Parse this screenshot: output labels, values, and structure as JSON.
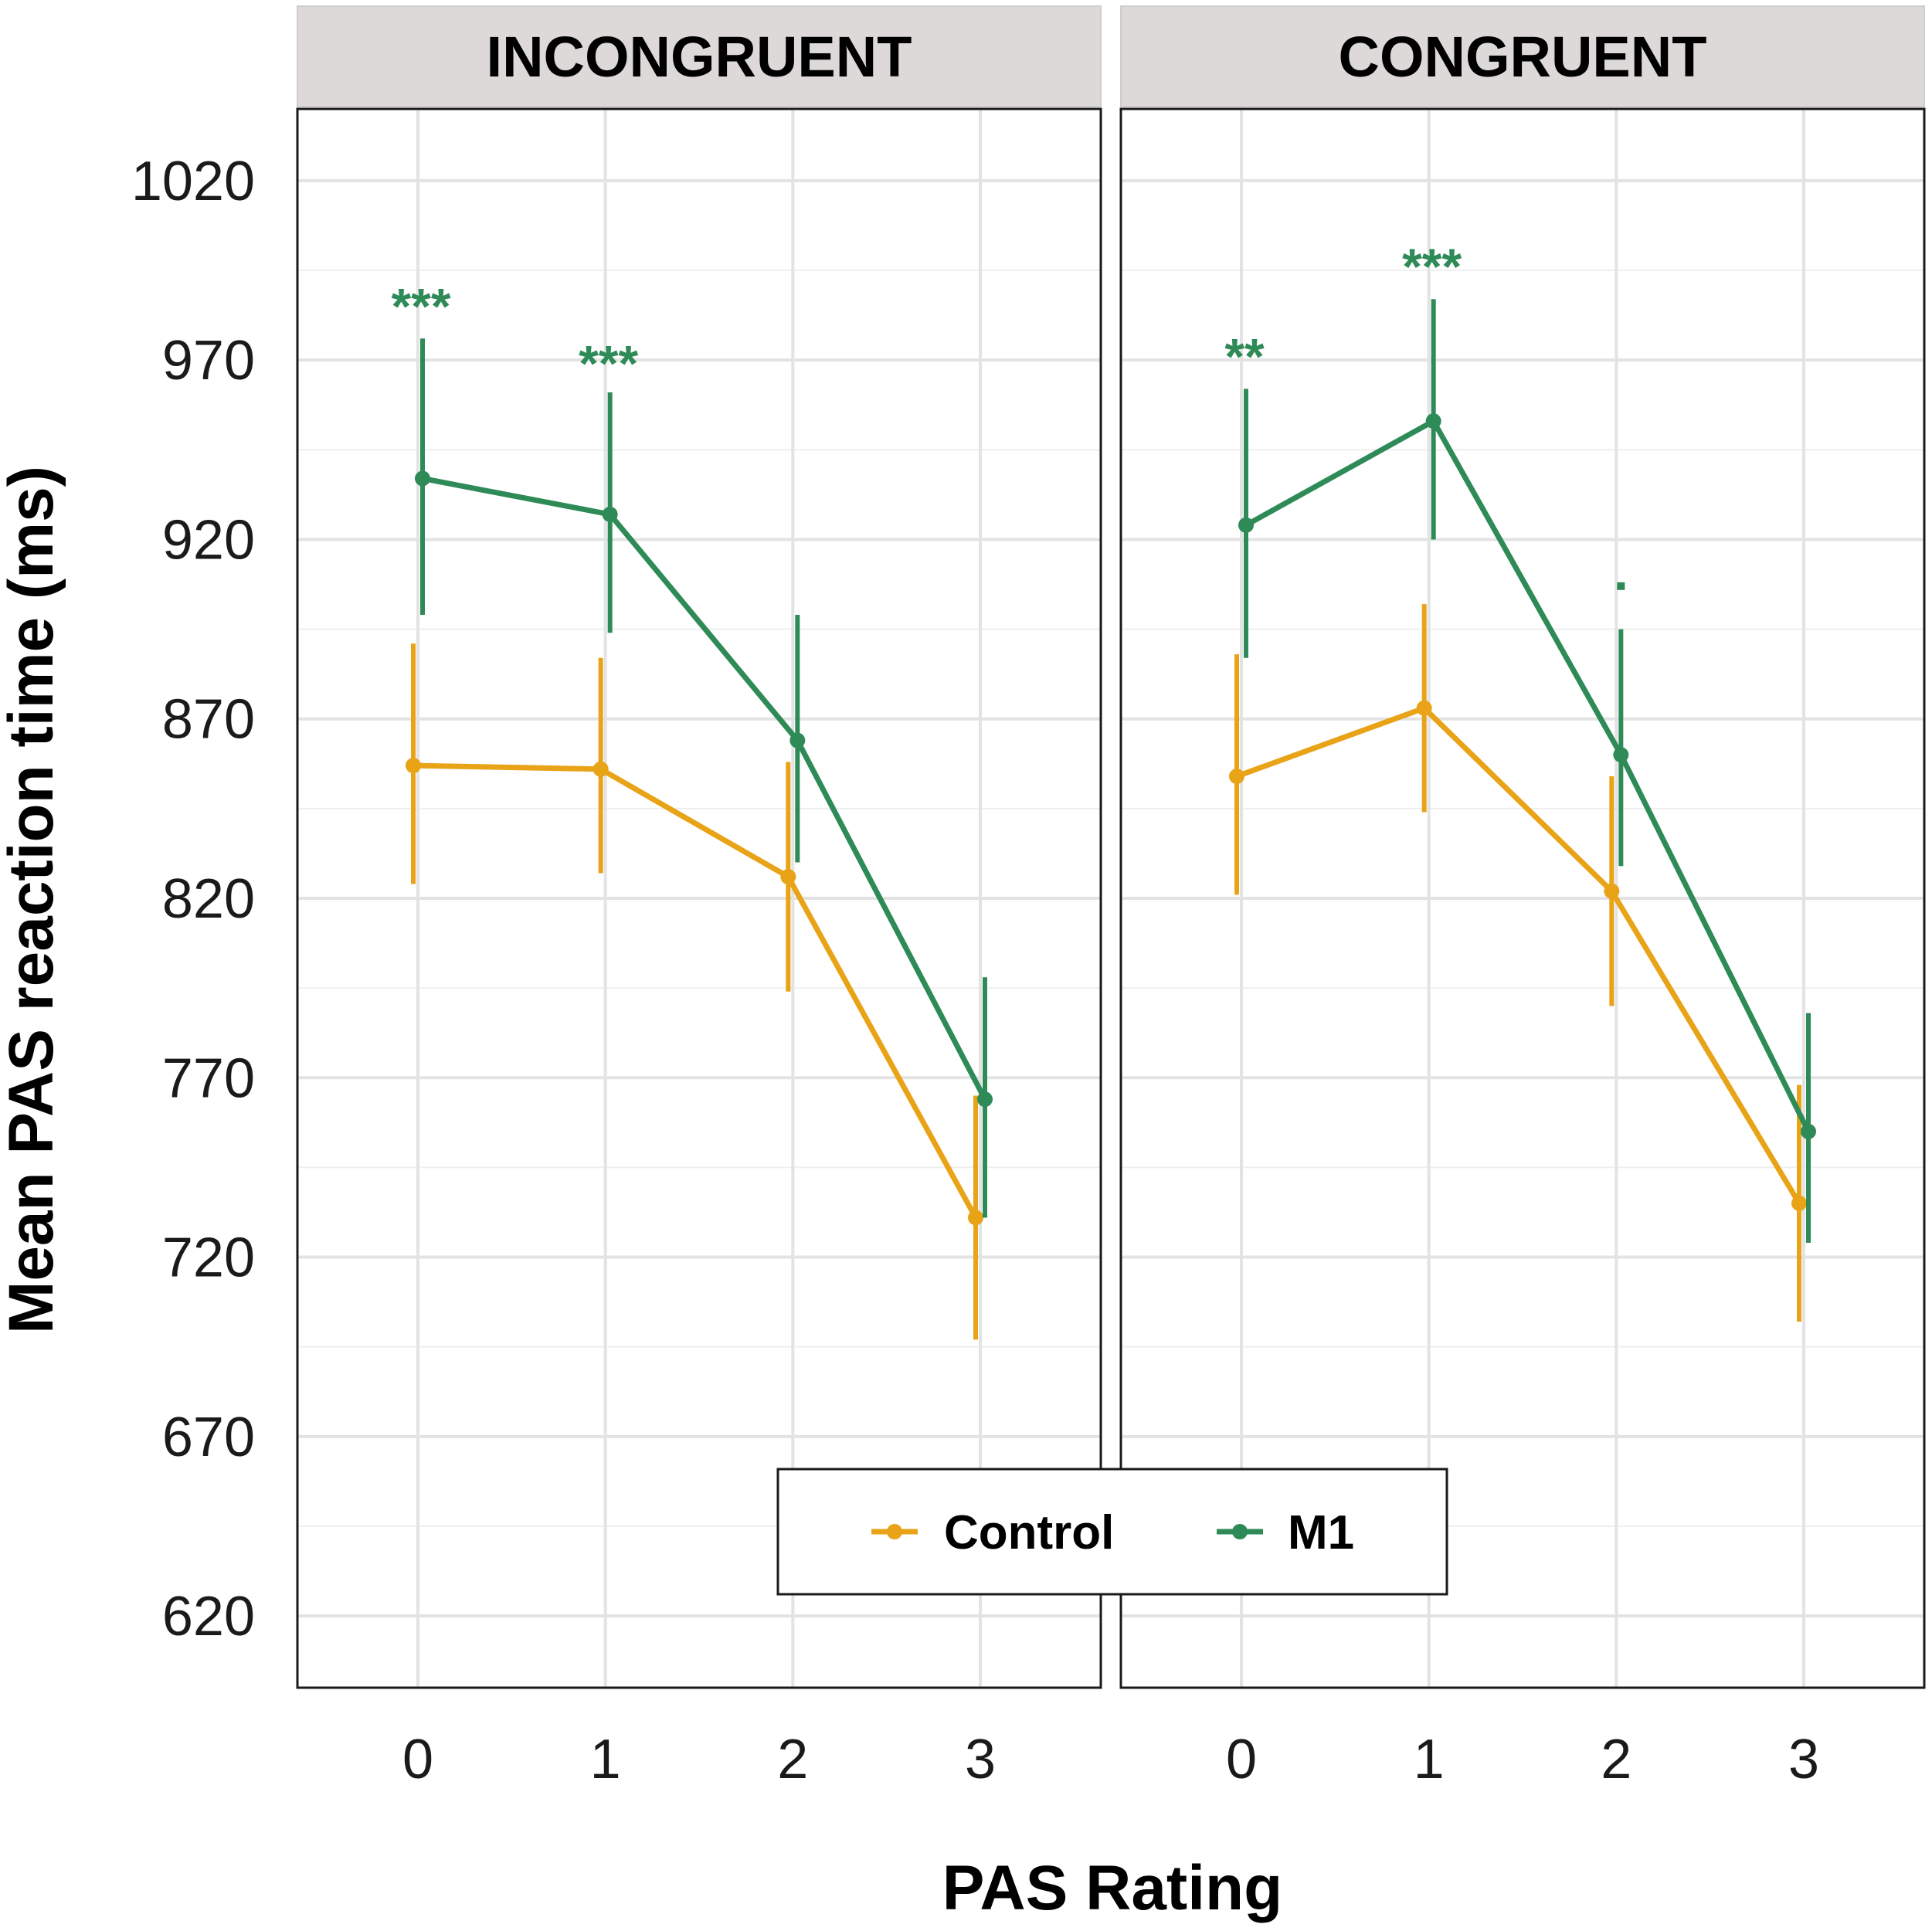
{
  "chart_data": {
    "type": "line",
    "ylabel": "Mean PAS reaction time (ms)",
    "xlabel": "PAS Rating",
    "ylim": [
      600,
      1040
    ],
    "yticks": [
      620,
      670,
      720,
      770,
      820,
      870,
      920,
      970,
      1020
    ],
    "xticks": [
      0,
      1,
      2,
      3
    ],
    "grid": true,
    "legend": {
      "position": "bottom-center",
      "entries": [
        "Control",
        "M1"
      ]
    },
    "colors": {
      "Control": "#E8A317",
      "M1": "#2E8B57",
      "strip_bg": "#DCD9D8"
    },
    "panels": [
      {
        "title": "INCONGRUENT",
        "x": [
          0,
          1,
          2,
          3
        ],
        "series": [
          {
            "name": "Control",
            "values": [
              857,
              856,
              826,
              731
            ],
            "err_low": [
              824,
              827,
              794,
              697
            ],
            "err_high": [
              891,
              887,
              858,
              765
            ]
          },
          {
            "name": "M1",
            "values": [
              937,
              927,
              864,
              764
            ],
            "err_low": [
              899,
              894,
              830,
              731
            ],
            "err_high": [
              976,
              961,
              899,
              798
            ]
          }
        ],
        "annotations": [
          {
            "x": 0,
            "y": 990,
            "text": "***"
          },
          {
            "x": 1,
            "y": 974,
            "text": "***"
          }
        ]
      },
      {
        "title": "CONGRUENT",
        "x": [
          0,
          1,
          2,
          3
        ],
        "series": [
          {
            "name": "Control",
            "values": [
              854,
              873,
              822,
              735
            ],
            "err_low": [
              821,
              844,
              790,
              702
            ],
            "err_high": [
              888,
              902,
              854,
              768
            ]
          },
          {
            "name": "M1",
            "values": [
              924,
              953,
              860,
              755
            ],
            "err_low": [
              887,
              920,
              829,
              724
            ],
            "err_high": [
              962,
              987,
              895,
              788
            ]
          }
        ],
        "annotations": [
          {
            "x": 0,
            "y": 976,
            "text": "**"
          },
          {
            "x": 1,
            "y": 1001,
            "text": "***"
          },
          {
            "x": 2,
            "y": 907,
            "text": "."
          }
        ]
      }
    ]
  }
}
